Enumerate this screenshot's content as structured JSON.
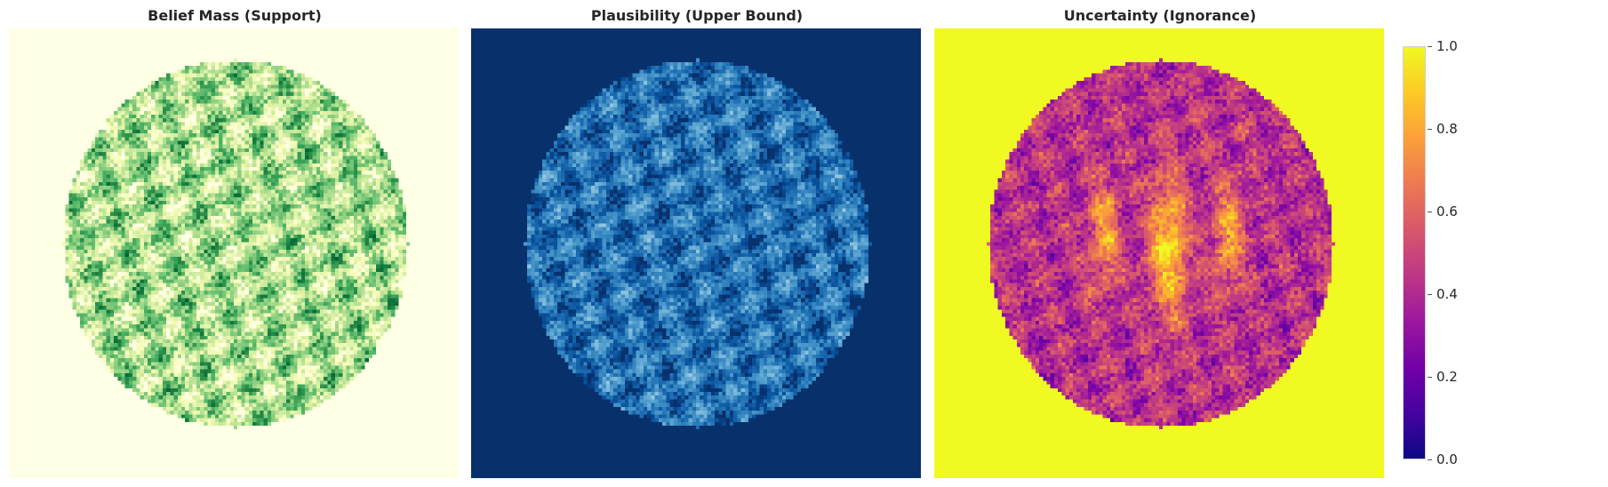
{
  "chart_data": [
    {
      "type": "heatmap",
      "title": "Belief Mass (Support)",
      "colormap": "Greens",
      "colorbar": {
        "vmin": 0.0,
        "vmax": 1.0,
        "ticks": [
          "0.0",
          "0.2",
          "0.4",
          "0.6",
          "0.8",
          "1.0"
        ]
      },
      "background_value": 0.0,
      "region": "circular brain-like mask, speckled values mostly 0.1-0.8",
      "grid": false,
      "xlabel": "",
      "ylabel": ""
    },
    {
      "type": "heatmap",
      "title": "Plausibility (Upper Bound)",
      "colormap": "Blues",
      "colorbar": {
        "vmin": 0.0,
        "vmax": 1.0,
        "ticks": [
          "0.0",
          "0.2",
          "0.4",
          "0.6",
          "0.8",
          "1.0"
        ]
      },
      "background_value": 1.0,
      "region": "circular brain-like mask, speckled values mostly 0.4-1.0",
      "grid": false,
      "xlabel": "",
      "ylabel": ""
    },
    {
      "type": "heatmap",
      "title": "Uncertainty (Ignorance)",
      "colormap": "plasma",
      "colorbar": {
        "vmin": 0.0,
        "vmax": 1.0,
        "ticks": [
          "0.0",
          "0.2",
          "0.4",
          "0.6",
          "0.8",
          "1.0"
        ]
      },
      "background_value": 1.0,
      "region": "brain-shaped mask, values mostly 0.2-0.8 with bright ventricle-like bands",
      "grid": false,
      "xlabel": "",
      "ylabel": ""
    }
  ],
  "colors": {
    "Greens": [
      "#ffffe5",
      "#f7fcb9",
      "#d9f0a3",
      "#addd8e",
      "#78c679",
      "#41ab5d",
      "#238443",
      "#006837",
      "#004529"
    ],
    "Blues": [
      "#f7fbff",
      "#deebf7",
      "#c6dbef",
      "#9ecae1",
      "#6baed6",
      "#4292c6",
      "#2171b5",
      "#08519c",
      "#08306b"
    ],
    "plasma": [
      "#0d0887",
      "#46039f",
      "#7201a8",
      "#9c179e",
      "#bd3786",
      "#d8576b",
      "#ed7953",
      "#fb9f3a",
      "#fdca26",
      "#f0f921"
    ]
  }
}
